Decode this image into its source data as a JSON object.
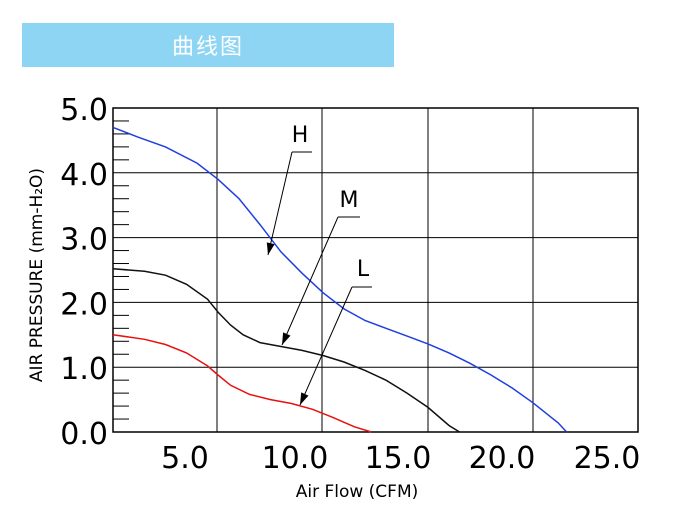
{
  "header": {
    "title": "曲线图"
  },
  "chart_data": {
    "type": "line",
    "xlabel": "Air Flow (CFM)",
    "ylabel": "AIR PRESSURE (mm-H₂O)",
    "xlim": [
      0,
      25
    ],
    "ylim": [
      0,
      5
    ],
    "x_ticks": [
      "5.0",
      "10.0",
      "15.0",
      "20.0",
      "25.0"
    ],
    "y_ticks": [
      "0.0",
      "1.0",
      "2.0",
      "3.0",
      "4.0",
      "5.0"
    ],
    "grid": true,
    "series": [
      {
        "name": "H",
        "color": "#1f3fe0",
        "x": [
          0,
          1.2,
          2.5,
          4.0,
          5.0,
          6.0,
          7.0,
          8.0,
          9.0,
          10.0,
          11.0,
          12.0,
          13.0,
          14.0,
          15.0,
          16.0,
          17.0,
          18.0,
          19.0,
          20.0,
          21.2,
          21.6
        ],
        "y": [
          4.7,
          4.55,
          4.4,
          4.15,
          3.9,
          3.6,
          3.2,
          2.78,
          2.45,
          2.15,
          1.9,
          1.72,
          1.6,
          1.48,
          1.36,
          1.22,
          1.06,
          0.88,
          0.68,
          0.45,
          0.14,
          0.0
        ]
      },
      {
        "name": "M",
        "color": "#111111",
        "x": [
          0,
          1.5,
          2.5,
          3.5,
          4.5,
          5.0,
          5.6,
          6.2,
          7.0,
          8.0,
          9.0,
          10.0,
          11.0,
          12.0,
          13.0,
          14.0,
          15.0,
          16.0,
          16.5
        ],
        "y": [
          2.52,
          2.48,
          2.42,
          2.28,
          2.05,
          1.85,
          1.65,
          1.5,
          1.38,
          1.32,
          1.26,
          1.18,
          1.08,
          0.95,
          0.8,
          0.6,
          0.38,
          0.1,
          0.0
        ]
      },
      {
        "name": "L",
        "color": "#e81010",
        "x": [
          0,
          1.5,
          2.5,
          3.5,
          4.5,
          5.0,
          5.6,
          6.5,
          7.5,
          8.5,
          9.5,
          10.5,
          11.0,
          11.5,
          12.3
        ],
        "y": [
          1.5,
          1.43,
          1.35,
          1.22,
          1.02,
          0.88,
          0.72,
          0.58,
          0.5,
          0.44,
          0.35,
          0.22,
          0.15,
          0.08,
          0.0
        ]
      }
    ]
  }
}
